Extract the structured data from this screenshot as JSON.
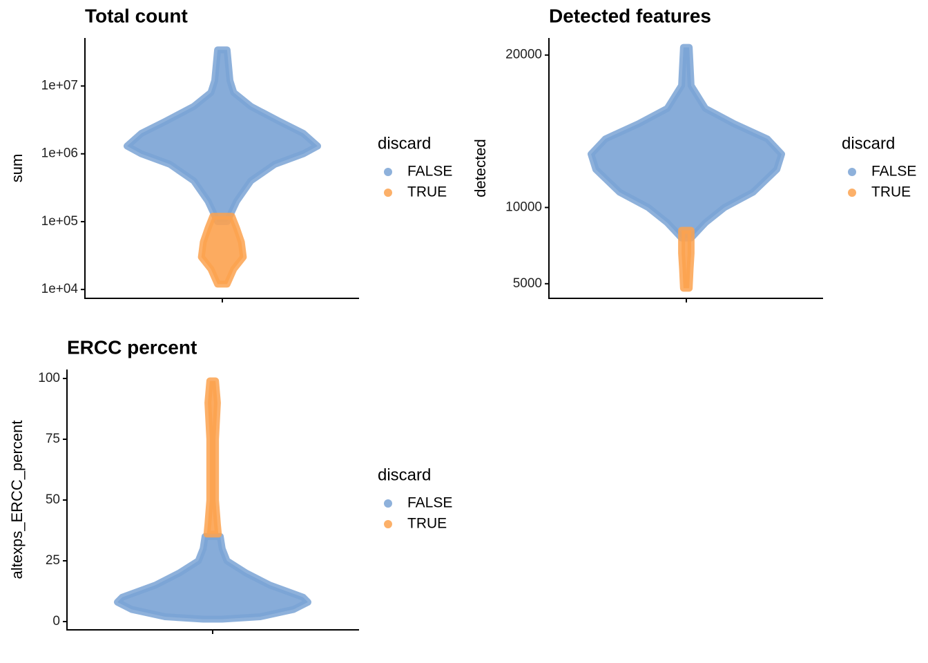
{
  "chart_data": [
    {
      "type": "violin",
      "title": "Total count",
      "y_label": "sum",
      "log_scale": true,
      "ylim": [
        7400,
        51000000
      ],
      "yticks": [
        {
          "value": 10000,
          "label": "1e+04"
        },
        {
          "value": 100000,
          "label": "1e+05"
        },
        {
          "value": 1000000,
          "label": "1e+06"
        },
        {
          "value": 10000000,
          "label": "1e+07"
        }
      ],
      "legend_title": "discard",
      "series": [
        {
          "name": "FALSE",
          "color": "#7aa3d5",
          "values": [
            34000000,
            12000000,
            8000000,
            5000000,
            3000000,
            2000000,
            1300000,
            1000000,
            700000,
            400000,
            200000,
            100000
          ],
          "widths": [
            0.05,
            0.08,
            0.12,
            0.3,
            0.6,
            0.85,
            1.0,
            0.85,
            0.55,
            0.3,
            0.15,
            0.05
          ]
        },
        {
          "name": "TRUE",
          "color": "#fca24f",
          "values": [
            120000,
            80000,
            50000,
            30000,
            20000,
            12000
          ],
          "widths": [
            0.1,
            0.15,
            0.2,
            0.22,
            0.12,
            0.05
          ]
        }
      ]
    },
    {
      "type": "violin",
      "title": "Detected features",
      "y_label": "detected",
      "log_scale": false,
      "ylim": [
        4040,
        21120
      ],
      "yticks": [
        5000,
        10000,
        20000
      ],
      "legend_title": "discard",
      "series": [
        {
          "name": "FALSE",
          "color": "#7aa3d5",
          "values": [
            20500,
            18000,
            16500,
            15500,
            14500,
            13500,
            12500,
            11000,
            10000,
            9000,
            8000
          ],
          "widths": [
            0.03,
            0.05,
            0.2,
            0.5,
            0.85,
            1.0,
            0.95,
            0.7,
            0.4,
            0.2,
            0.05
          ]
        },
        {
          "name": "TRUE",
          "color": "#fca24f",
          "values": [
            8500,
            7000,
            6000,
            4700
          ],
          "widths": [
            0.05,
            0.05,
            0.04,
            0.03
          ]
        }
      ]
    },
    {
      "type": "violin",
      "title": "ERCC percent",
      "y_label": "altexps_ERCC_percent",
      "log_scale": false,
      "ylim": [
        -3.4,
        103.7
      ],
      "yticks": [
        0,
        25,
        50,
        75,
        100
      ],
      "legend_title": "discard",
      "series": [
        {
          "name": "FALSE",
          "color": "#7aa3d5",
          "values": [
            35,
            30,
            25,
            20,
            15,
            10,
            8,
            5,
            2,
            1
          ],
          "widths": [
            0.08,
            0.1,
            0.15,
            0.35,
            0.6,
            0.95,
            1.0,
            0.85,
            0.5,
            0.1
          ]
        },
        {
          "name": "TRUE",
          "color": "#fca24f",
          "values": [
            99,
            90,
            75,
            50,
            40,
            36
          ],
          "widths": [
            0.03,
            0.05,
            0.03,
            0.03,
            0.05,
            0.06
          ]
        }
      ]
    }
  ]
}
